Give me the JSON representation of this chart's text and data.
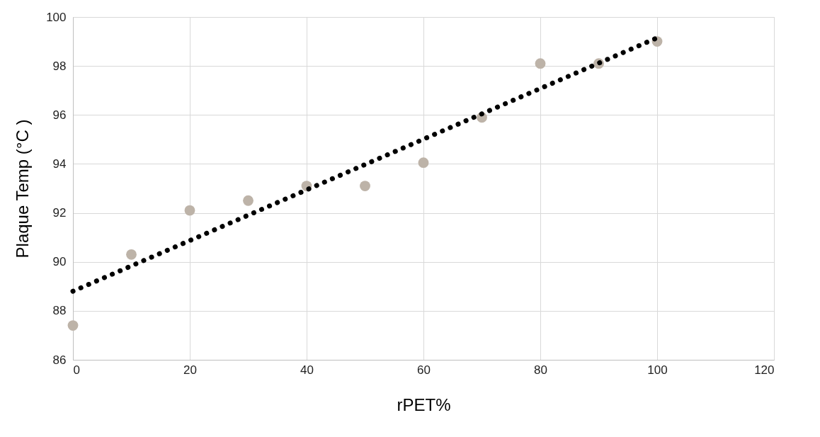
{
  "chart_data": {
    "type": "scatter",
    "xlabel": "rPET%",
    "ylabel": "Plaque Temp (°C )",
    "x": [
      0,
      10,
      20,
      30,
      40,
      50,
      60,
      70,
      80,
      90,
      100
    ],
    "series": [
      {
        "type": "scatter",
        "color": "#bdb3a8",
        "marker": "circle",
        "values": [
          87.4,
          90.3,
          92.1,
          92.5,
          93.1,
          93.1,
          94.05,
          95.9,
          98.1,
          98.1,
          99.0
        ]
      },
      {
        "type": "line",
        "color": "#000000",
        "line_style": "dotted",
        "x": [
          0,
          100
        ],
        "values": [
          88.8,
          99.15
        ]
      }
    ],
    "xlim": [
      0,
      120
    ],
    "xticks": [
      0,
      20,
      40,
      60,
      80,
      100,
      120
    ],
    "ylim": [
      86,
      100
    ],
    "yticks": [
      86,
      88,
      90,
      92,
      94,
      96,
      98,
      100
    ],
    "grid": true
  }
}
